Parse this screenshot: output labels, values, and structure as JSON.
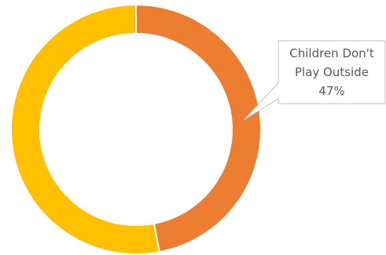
{
  "chart_data": {
    "type": "pie",
    "variant": "doughnut",
    "categories": [
      "Children Don't Play Outside",
      ""
    ],
    "values": [
      47,
      53
    ],
    "colors": [
      "#ED7D31",
      "#FFC000"
    ],
    "start_angle_deg": 0,
    "direction": "clockwise",
    "legend": "none",
    "data_labels": [
      {
        "slice_index": 0,
        "lines": [
          "Children Don't",
          "Play Outside",
          "47%"
        ]
      }
    ]
  }
}
